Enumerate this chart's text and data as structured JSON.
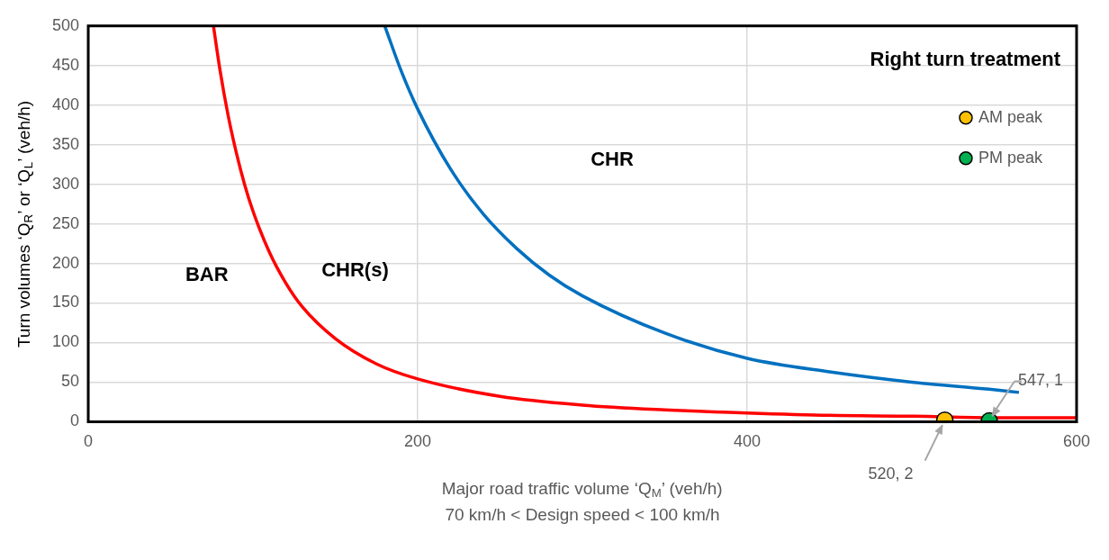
{
  "chart_data": {
    "type": "line",
    "title": "Right turn treatment",
    "xlabel": "Major road traffic volume ‘Q$_{M}$’ (veh/h)",
    "ylabel": "Turn volumes ‘Q$_{R}$’ or ‘Q$_{L}$’ (veh/h)",
    "annotations": [
      "70 km/h < Design speed < 100 km/h",
      "BAR",
      "CHR(s)",
      "CHR",
      {
        "text": "520, 2",
        "x": 520,
        "y": 2
      },
      {
        "text": "547, 1",
        "x": 547,
        "y": 1
      }
    ],
    "series": [
      {
        "color": "#ff0000",
        "marker": "none",
        "x": [
          76,
          80,
          85,
          90,
          95,
          100,
          110,
          120,
          130,
          150,
          175,
          200,
          250,
          300,
          350,
          400,
          450,
          500,
          550,
          600
        ],
        "values": [
          500,
          444,
          386,
          339,
          299,
          266,
          214,
          175,
          145,
          105,
          73,
          54,
          32,
          21,
          15,
          11,
          8,
          7,
          5,
          5
        ]
      },
      {
        "color": "#0070c0",
        "marker": "none",
        "x": [
          180,
          190,
          200,
          220,
          240,
          260,
          280,
          300,
          350,
          400,
          450,
          500,
          547,
          565
        ],
        "values": [
          500,
          443,
          395,
          319,
          262,
          219,
          185,
          159,
          112,
          80,
          63,
          50,
          41,
          37
        ]
      },
      {
        "type": "scatter",
        "name": "AM peak",
        "color": "#ffc000",
        "marker": "circle",
        "x": [
          520
        ],
        "values": [
          2
        ]
      },
      {
        "type": "scatter",
        "name": "PM peak",
        "color": "#00b050",
        "marker": "circle",
        "x": [
          547
        ],
        "values": [
          1
        ]
      }
    ],
    "xlim": [
      0,
      600
    ],
    "xticks": [
      0,
      200,
      400,
      600
    ],
    "ylim": [
      0,
      500
    ],
    "yticks": [
      0,
      50,
      100,
      150,
      200,
      250,
      300,
      350,
      400,
      450,
      500
    ],
    "grid": true,
    "legend": "top right",
    "line_style": "solid"
  }
}
